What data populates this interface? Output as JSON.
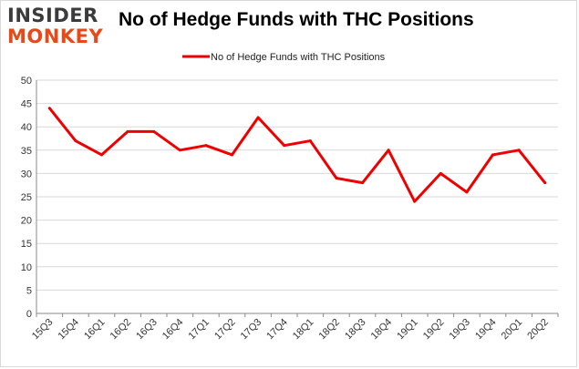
{
  "logo": {
    "line1": "INSIDER",
    "line2": "MONKEY"
  },
  "title": "No of Hedge Funds with THC Positions",
  "colors": {
    "series": "#ee0000",
    "grid": "#d9d9d9",
    "axis": "#888888",
    "logo_dark": "#3b3b3b",
    "logo_accent": "#e64a19"
  },
  "chart_data": {
    "type": "line",
    "title": "No of Hedge Funds with THC Positions",
    "xlabel": "",
    "ylabel": "",
    "categories": [
      "15Q3",
      "15Q4",
      "16Q1",
      "16Q2",
      "16Q3",
      "16Q4",
      "17Q1",
      "17Q2",
      "17Q3",
      "17Q4",
      "18Q1",
      "18Q2",
      "18Q3",
      "18Q4",
      "19Q1",
      "19Q2",
      "19Q3",
      "19Q4",
      "20Q1",
      "20Q2"
    ],
    "series": [
      {
        "name": "No of Hedge Funds with THC Positions",
        "values": [
          44,
          37,
          34,
          39,
          39,
          35,
          36,
          34,
          42,
          36,
          37,
          29,
          28,
          35,
          24,
          30,
          26,
          34,
          35,
          28
        ]
      }
    ],
    "ylim": [
      0,
      50
    ],
    "yticks": [
      0,
      5,
      10,
      15,
      20,
      25,
      30,
      35,
      40,
      45,
      50
    ],
    "grid": true,
    "legend_position": "top-center"
  }
}
